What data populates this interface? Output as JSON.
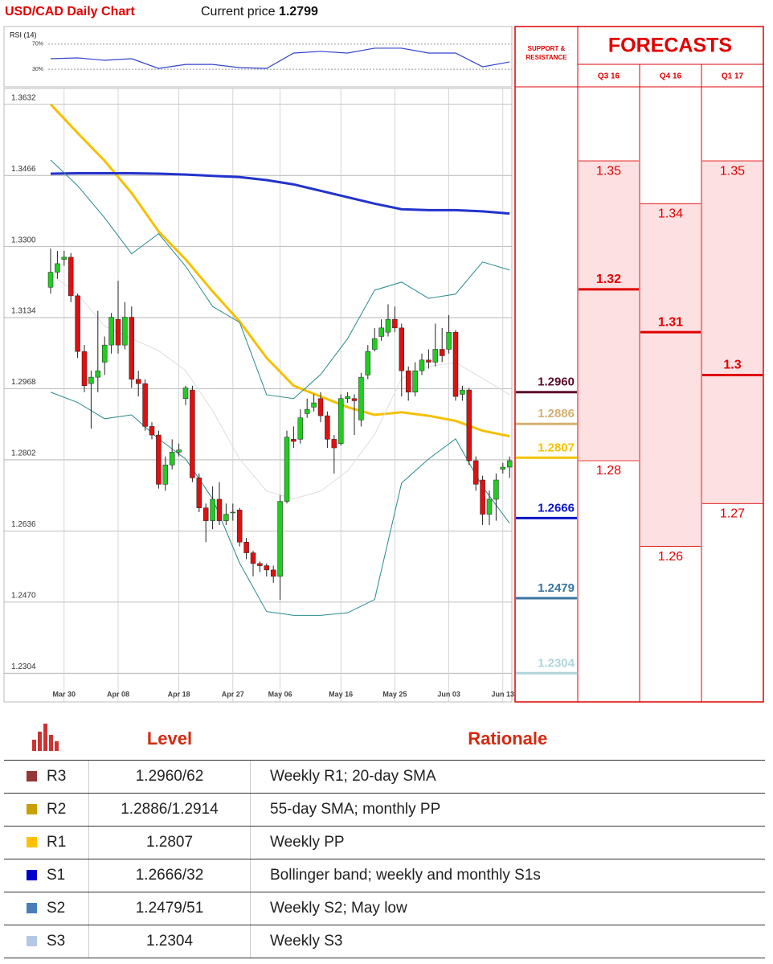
{
  "header": {
    "title": "USD/CAD Daily Chart",
    "price_label": "Current price",
    "price": "1.2799"
  },
  "chart_data": [
    {
      "type": "candlestick",
      "categories": [
        null,
        null,
        "Mar 30",
        null,
        null,
        null,
        null,
        null,
        null,
        null,
        "Apr 08",
        null,
        null,
        null,
        null,
        null,
        null,
        null,
        null,
        "Apr 18",
        null,
        null,
        null,
        null,
        null,
        null,
        null,
        "Apr 27",
        null,
        null,
        null,
        null,
        null,
        null,
        "May 06",
        null,
        null,
        null,
        null,
        null,
        null,
        null,
        null,
        "May 16",
        null,
        null,
        null,
        null,
        null,
        null,
        null,
        "May 25",
        null,
        null,
        null,
        null,
        null,
        null,
        null,
        "Jun 03",
        null,
        null,
        null,
        null,
        null,
        null,
        null,
        "Jun 13",
        null
      ],
      "open": [
        1.3205,
        1.324,
        1.327,
        1.3275,
        1.3185,
        1.3055,
        1.298,
        1.2995,
        1.303,
        1.307,
        1.313,
        1.307,
        1.3135,
        1.299,
        1.298,
        1.288,
        1.286,
        1.2745,
        1.279,
        1.282,
        1.2945,
        1.2965,
        1.276,
        1.269,
        1.266,
        1.271,
        1.266,
        1.268,
        1.2685,
        1.261,
        1.2585,
        1.256,
        1.2555,
        1.2545,
        1.253,
        1.2705,
        1.285,
        1.285,
        1.291,
        1.2925,
        1.2945,
        1.2905,
        1.285,
        1.284,
        1.2945,
        1.2945,
        1.2895,
        1.3,
        1.306,
        1.309,
        1.31,
        1.313,
        1.311,
        1.301,
        1.296,
        1.301,
        1.3035,
        1.303,
        1.306,
        1.306,
        1.31,
        1.2955,
        1.2965,
        1.28,
        1.2755,
        1.2675,
        1.271,
        1.278,
        1.2785
      ],
      "high": [
        1.3295,
        1.329,
        1.329,
        1.3285,
        1.319,
        1.307,
        1.301,
        1.315,
        1.309,
        1.3145,
        1.322,
        1.317,
        1.316,
        1.301,
        1.299,
        1.289,
        1.287,
        1.281,
        1.285,
        1.284,
        1.2975,
        1.2975,
        1.277,
        1.27,
        1.274,
        1.275,
        1.27,
        1.27,
        1.269,
        1.262,
        1.259,
        1.2565,
        1.256,
        1.2555,
        1.272,
        1.287,
        1.288,
        1.292,
        1.2945,
        1.2955,
        1.296,
        1.2915,
        1.286,
        1.2955,
        1.296,
        1.2955,
        1.3005,
        1.307,
        1.311,
        1.313,
        1.3165,
        1.316,
        1.312,
        1.302,
        1.303,
        1.305,
        1.306,
        1.312,
        1.311,
        1.314,
        1.3105,
        1.2975,
        1.297,
        1.281,
        1.2765,
        1.273,
        1.277,
        1.2795,
        1.281
      ],
      "low": [
        1.319,
        1.3225,
        1.3255,
        1.317,
        1.304,
        1.296,
        1.2875,
        1.296,
        1.3,
        1.305,
        1.305,
        1.306,
        1.297,
        1.295,
        1.287,
        1.285,
        1.2735,
        1.273,
        1.278,
        1.281,
        1.293,
        1.275,
        1.268,
        1.261,
        1.264,
        1.265,
        1.265,
        1.266,
        1.26,
        1.257,
        1.253,
        1.254,
        1.253,
        1.2515,
        1.2475,
        1.27,
        1.283,
        1.284,
        1.29,
        1.2915,
        1.289,
        1.283,
        1.277,
        1.2835,
        1.2935,
        1.286,
        1.288,
        1.299,
        1.3055,
        1.308,
        1.309,
        1.31,
        1.295,
        1.294,
        1.295,
        1.3,
        1.3015,
        1.302,
        1.303,
        1.305,
        1.294,
        1.294,
        1.279,
        1.273,
        1.265,
        1.265,
        1.266,
        1.277,
        1.276
      ],
      "close": [
        1.324,
        1.326,
        1.3275,
        1.3185,
        1.3055,
        1.2975,
        1.2995,
        1.301,
        1.307,
        1.3135,
        1.307,
        1.3135,
        1.299,
        1.298,
        1.288,
        1.286,
        1.2745,
        1.279,
        1.282,
        1.2825,
        1.297,
        1.276,
        1.269,
        1.266,
        1.271,
        1.266,
        1.2675,
        1.268,
        1.261,
        1.2585,
        1.256,
        1.2555,
        1.2545,
        1.253,
        1.2705,
        1.2855,
        1.2845,
        1.29,
        1.292,
        1.2935,
        1.2905,
        1.285,
        1.283,
        1.2945,
        1.295,
        1.294,
        1.2995,
        1.3055,
        1.3085,
        1.311,
        1.313,
        1.311,
        1.301,
        1.296,
        1.301,
        1.3035,
        1.303,
        1.306,
        1.3045,
        1.31,
        1.295,
        1.2965,
        1.28,
        1.2745,
        1.2675,
        1.271,
        1.2755,
        1.2785,
        1.28
      ],
      "up_color": "#22cc22",
      "down_color": "#e01010",
      "ylim": [
        1.2237,
        1.3669
      ],
      "yticks": [
        1.2304,
        {
          "value": 1.247,
          "label": "1.2470"
        },
        1.2636,
        1.2802,
        1.2968,
        1.3134,
        {
          "value": 1.33,
          "label": "1.3300"
        },
        1.3466,
        1.3632
      ],
      "grid": true,
      "overlays": [
        {
          "color": "#f5c000",
          "width": 3,
          "x": [
            0,
            4,
            8,
            12,
            16,
            20,
            24,
            28,
            32,
            36,
            40,
            44,
            48,
            52,
            56,
            60,
            64,
            68
          ],
          "values": [
            1.3632,
            1.3565,
            1.35,
            1.3425,
            1.3335,
            1.327,
            1.3195,
            1.3125,
            1.304,
            1.2975,
            1.295,
            1.2925,
            1.2907,
            1.2913,
            1.2905,
            1.2893,
            1.287,
            1.2857
          ]
        },
        {
          "color": "#2233cc",
          "width": 3,
          "x": [
            0,
            4,
            8,
            12,
            16,
            20,
            24,
            28,
            32,
            36,
            40,
            44,
            48,
            52,
            56,
            60,
            64,
            68
          ],
          "values": [
            1.347,
            1.3471,
            1.3471,
            1.3471,
            1.347,
            1.3468,
            1.3465,
            1.3462,
            1.3455,
            1.3445,
            1.343,
            1.3415,
            1.34,
            1.3387,
            1.3385,
            1.3385,
            1.3382,
            1.3377
          ]
        },
        {
          "color": "#2a8a8a",
          "width": 1,
          "x": [
            0,
            4,
            8,
            12,
            16,
            20,
            24,
            28,
            32,
            36,
            40,
            44,
            48,
            52,
            56,
            60,
            64,
            68
          ],
          "values": [
            1.3502,
            1.3442,
            1.3367,
            1.3283,
            1.333,
            1.3254,
            1.316,
            1.3123,
            1.2954,
            1.2945,
            1.3001,
            1.3085,
            1.3198,
            1.3217,
            1.3179,
            1.3189,
            1.3264,
            1.3245
          ]
        },
        {
          "color": "#2a8a8a",
          "width": 1,
          "x": [
            0,
            4,
            8,
            12,
            16,
            20,
            24,
            28,
            32,
            36,
            40,
            44,
            48,
            52,
            56,
            60,
            64,
            68
          ],
          "values": [
            1.296,
            1.2936,
            1.2898,
            1.2907,
            1.2851,
            1.2804,
            1.2711,
            1.2561,
            1.2448,
            1.2439,
            1.2439,
            1.2445,
            1.2476,
            1.2748,
            1.2804,
            1.2851,
            1.2739,
            1.2654
          ]
        },
        {
          "color": "#dddddd",
          "width": 1,
          "x": [
            0,
            4,
            8,
            12,
            16,
            20,
            24,
            28,
            32,
            36,
            40,
            44,
            48,
            52,
            56,
            60,
            64,
            68
          ],
          "values": [
            1.3236,
            1.3189,
            1.3114,
            1.3085,
            1.3057,
            1.301,
            1.2917,
            1.2804,
            1.2729,
            1.2711,
            1.2729,
            1.2776,
            1.2861,
            1.2992,
            1.302,
            1.3029,
            1.2992,
            1.2954
          ]
        }
      ],
      "support_resistance_title": "SUPPORT & RESISTANCE",
      "levels": [
        {
          "value": 1.296,
          "label": "1.2960",
          "color": "#5a0a2a"
        },
        {
          "value": 1.2886,
          "label": "1.2886",
          "color": "#d4b070"
        },
        {
          "value": 1.2807,
          "label": "1.2807",
          "color": "#f5c400"
        },
        {
          "value": 1.2666,
          "label": "1.2666",
          "color": "#0a14c8"
        },
        {
          "value": 1.2479,
          "label": "1.2479",
          "color": "#3a75a0"
        },
        {
          "value": 1.2304,
          "label": "1.2304",
          "color": "#b0d4dc"
        }
      ]
    },
    {
      "type": "line",
      "title": "RSI (14)",
      "color": "#3344cc",
      "x": [
        0,
        4,
        8,
        12,
        16,
        20,
        24,
        28,
        32,
        36,
        40,
        44,
        48,
        52,
        56,
        60,
        64,
        68
      ],
      "values": [
        46.8,
        48.1,
        44.2,
        46.8,
        31.3,
        37.7,
        37.7,
        32.6,
        31.3,
        55.8,
        58.4,
        55.8,
        63.5,
        63.5,
        55.8,
        55.8,
        33.9,
        41.6
      ],
      "ylim": [
        2,
        98
      ],
      "yticks": [
        {
          "value": 30,
          "label": "30%"
        },
        {
          "value": 70,
          "label": "70%"
        }
      ]
    },
    {
      "type": "forecast",
      "title": "FORECASTS",
      "fill": "#fde0e2",
      "color": "#e00000",
      "columns": [
        {
          "name": "Q3 16",
          "values": [
            1.35,
            1.32,
            1.28
          ]
        },
        {
          "name": "Q4 16",
          "values": [
            1.34,
            1.31,
            1.26
          ]
        },
        {
          "name": "Q1 17",
          "values": [
            1.35,
            1.3,
            1.27
          ]
        }
      ]
    }
  ],
  "table": {
    "header": [
      "Level",
      "Rationale"
    ],
    "rows": [
      {
        "color": "#953735",
        "code": "R3",
        "level": "1.2960/62",
        "rationale": "Weekly R1; 20-day SMA"
      },
      {
        "color": "#c9a000",
        "code": "R2",
        "level": "1.2886/1.2914",
        "rationale": "55-day SMA; monthly PP"
      },
      {
        "color": "#ffc000",
        "code": "R1",
        "level": "1.2807",
        "rationale": "Weekly PP"
      },
      {
        "color": "#0000cc",
        "code": "S1",
        "level": "1.2666/32",
        "rationale": "Bollinger band; weekly and monthly S1s"
      },
      {
        "color": "#4a7ebb",
        "code": "S2",
        "level": "1.2479/51",
        "rationale": "Weekly S2; May low"
      },
      {
        "color": "#b4c7e7",
        "code": "S3",
        "level": "1.2304",
        "rationale": "Weekly S3"
      }
    ]
  }
}
